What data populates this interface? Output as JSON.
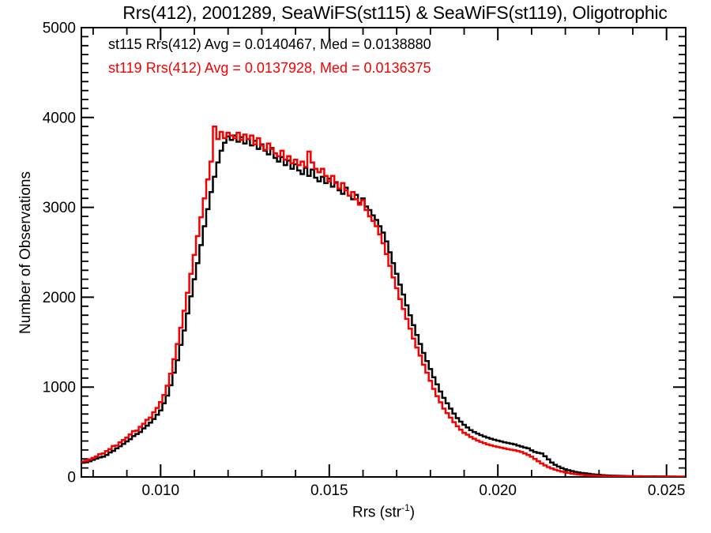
{
  "title": "Rrs(412), 2001289, SeaWiFS(st115) & SeaWiFS(st119), Oligotrophic",
  "chart_data": {
    "type": "line",
    "style": "step-histogram",
    "title": "Rrs(412), 2001289, SeaWiFS(st115) & SeaWiFS(st119), Oligotrophic",
    "xlabel": "Rrs (str-1)",
    "xlabel_parts": {
      "base": "Rrs (str",
      "sup": "-1",
      "end": ")"
    },
    "ylabel": "Number of Observations",
    "xlim": [
      0.00765,
      0.02557
    ],
    "ylim": [
      0,
      5000
    ],
    "xticks": [
      0.01,
      0.015,
      0.02,
      0.025
    ],
    "xtick_labels": [
      "0.010",
      "0.015",
      "0.020",
      "0.025"
    ],
    "x_minor_tick_step": 0.001,
    "yticks": [
      0,
      1000,
      2000,
      3000,
      4000,
      5000
    ],
    "ytick_labels": [
      "0",
      "1000",
      "2000",
      "3000",
      "4000",
      "5000"
    ],
    "y_minor_tick_step": 100,
    "grid": false,
    "legend_position": "top-left-inside",
    "bin_start": 0.0076,
    "bin_step": 0.0001,
    "series": [
      {
        "name": "st115",
        "stat_label": "st115 Rrs(412) Avg = 0.0140467, Med = 0.0138880",
        "avg": 0.0140467,
        "med": 0.013888,
        "color": "#000000",
        "values": [
          150,
          158,
          163,
          175,
          190,
          205,
          218,
          225,
          245,
          272,
          290,
          318,
          342,
          368,
          395,
          420,
          455,
          478,
          500,
          540,
          570,
          605,
          645,
          692,
          740,
          820,
          905,
          1020,
          1160,
          1300,
          1470,
          1630,
          1820,
          2010,
          2200,
          2380,
          2580,
          2790,
          2980,
          3170,
          3340,
          3500,
          3630,
          3720,
          3790,
          3750,
          3800,
          3730,
          3780,
          3710,
          3760,
          3690,
          3740,
          3650,
          3700,
          3630,
          3590,
          3660,
          3550,
          3510,
          3560,
          3470,
          3520,
          3430,
          3480,
          3410,
          3370,
          3440,
          3350,
          3420,
          3330,
          3290,
          3340,
          3270,
          3320,
          3230,
          3280,
          3190,
          3150,
          3220,
          3130,
          3090,
          3140,
          3050,
          3100,
          3010,
          2970,
          2910,
          2860,
          2790,
          2720,
          2620,
          2500,
          2380,
          2260,
          2140,
          2030,
          1910,
          1800,
          1690,
          1580,
          1480,
          1380,
          1290,
          1200,
          1110,
          1030,
          950,
          880,
          820,
          760,
          705,
          655,
          615,
          580,
          550,
          520,
          500,
          482,
          466,
          450,
          437,
          425,
          414,
          404,
          395,
          386,
          378,
          370,
          362,
          350,
          338,
          328,
          318,
          295,
          278,
          268,
          262,
          230,
          195,
          160,
          135,
          115,
          98,
          85,
          75,
          65,
          56,
          49,
          44,
          40,
          35,
          30,
          26,
          23,
          20,
          18,
          16,
          14,
          13,
          12,
          11,
          10,
          9,
          9,
          8,
          8,
          7,
          7,
          6,
          6,
          5,
          5,
          5,
          4,
          4,
          4,
          3,
          3,
          3
        ]
      },
      {
        "name": "st119",
        "stat_label": "st119 Rrs(412) Avg = 0.0137928, Med = 0.0136375",
        "avg": 0.0137928,
        "med": 0.0136375,
        "color": "#f80000",
        "values": [
          162,
          172,
          180,
          195,
          212,
          228,
          252,
          262,
          288,
          310,
          345,
          350,
          385,
          410,
          438,
          472,
          510,
          515,
          558,
          592,
          636,
          662,
          720,
          768,
          832,
          912,
          1015,
          1150,
          1310,
          1480,
          1660,
          1850,
          2050,
          2260,
          2470,
          2680,
          2890,
          3100,
          3310,
          3510,
          3900,
          3760,
          3840,
          3770,
          3830,
          3800,
          3770,
          3830,
          3750,
          3810,
          3760,
          3800,
          3700,
          3770,
          3690,
          3640,
          3710,
          3650,
          3600,
          3570,
          3630,
          3530,
          3570,
          3490,
          3530,
          3470,
          3510,
          3450,
          3620,
          3500,
          3430,
          3390,
          3430,
          3350,
          3290,
          3350,
          3270,
          3210,
          3270,
          3190,
          3130,
          3170,
          3090,
          3030,
          3080,
          2970,
          2900,
          2850,
          2790,
          2700,
          2600,
          2480,
          2350,
          2220,
          2100,
          1980,
          1870,
          1760,
          1650,
          1540,
          1440,
          1350,
          1250,
          1160,
          1070,
          980,
          900,
          830,
          760,
          710,
          660,
          610,
          565,
          525,
          490,
          470,
          445,
          425,
          405,
          390,
          375,
          363,
          352,
          342,
          334,
          326,
          318,
          310,
          303,
          296,
          288,
          278,
          262,
          245,
          225,
          200,
          175,
          150,
          128,
          110,
          95,
          82,
          70,
          60,
          52,
          45,
          38,
          32,
          27,
          23,
          20,
          17,
          15,
          13,
          12,
          11,
          10,
          9,
          9,
          8,
          8,
          7,
          7,
          6,
          6,
          6,
          5,
          5,
          5,
          5,
          4,
          4,
          4,
          4,
          4,
          4,
          4,
          4,
          4,
          4
        ]
      }
    ]
  }
}
